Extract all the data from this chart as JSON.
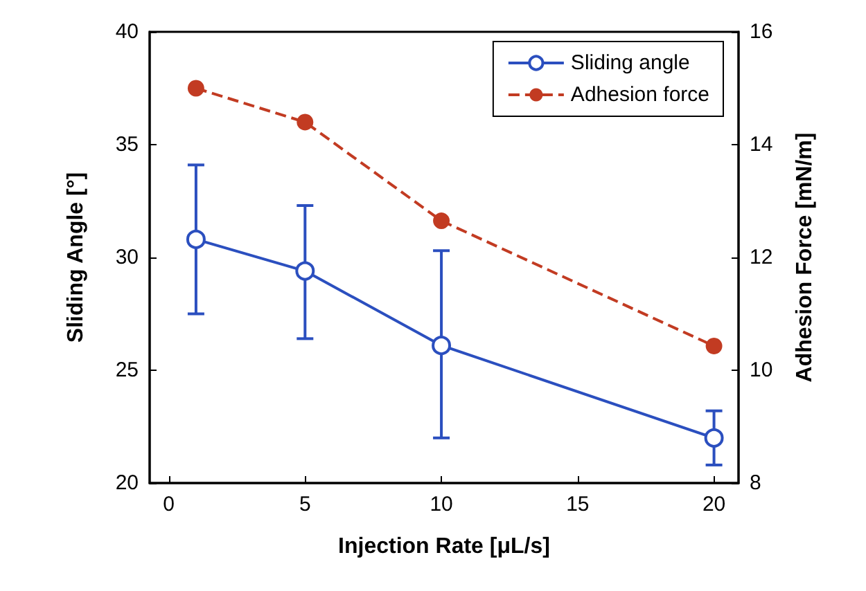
{
  "chart_data": {
    "type": "line",
    "xlabel": "Injection Rate [μL/s]",
    "ylabel": "Sliding Angle [°]",
    "y2label": "Adhesion Force [mN/m]",
    "x": [
      1,
      5,
      10,
      20
    ],
    "series": [
      {
        "name": "Sliding angle",
        "color": "#2b4fbf",
        "values": [
          30.8,
          29.4,
          26.1,
          22.0
        ],
        "errors": [
          [
            27.5,
            34.1
          ],
          [
            26.4,
            32.3
          ],
          [
            22.0,
            30.3
          ],
          [
            20.8,
            23.2
          ]
        ],
        "line_style": "solid"
      },
      {
        "name": "Adhesion force",
        "color": "#c23b22",
        "values": [
          15.0,
          14.4,
          12.65,
          10.43
        ],
        "axis": "y2",
        "line_style": "dashed"
      }
    ],
    "xlim": [
      -0.7,
      20.9
    ],
    "xticks": [
      0,
      5,
      10,
      15,
      20
    ],
    "ylim": [
      20,
      40
    ],
    "yticks": [
      20,
      25,
      30,
      35,
      40
    ],
    "y2lim": [
      8,
      16
    ],
    "y2ticks": [
      8,
      10,
      12,
      14,
      16
    ],
    "grid": false,
    "legend": "top right",
    "marker": "circle"
  }
}
